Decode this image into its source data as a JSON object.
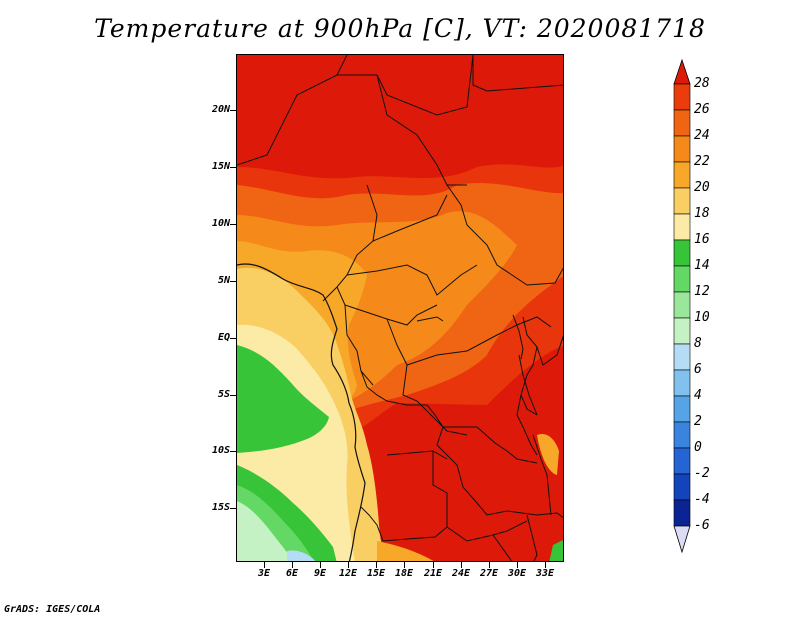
{
  "title": "Temperature at 900hPa [C], VT: 2020081718",
  "credit": "GrADS: IGES/COLA",
  "map": {
    "lat_labels": [
      "20N",
      "15N",
      "10N",
      "5N",
      "EQ",
      "5S",
      "10S",
      "15S"
    ],
    "lon_labels": [
      "3E",
      "6E",
      "9E",
      "12E",
      "15E",
      "18E",
      "21E",
      "24E",
      "27E",
      "30E",
      "33E"
    ]
  },
  "colorbar": {
    "labels": [
      "28",
      "26",
      "24",
      "22",
      "20",
      "18",
      "16",
      "14",
      "12",
      "10",
      "8",
      "6",
      "4",
      "2",
      "0",
      "-2",
      "-4",
      "-6"
    ],
    "colors": [
      "#dd1a0a",
      "#ea3c0c",
      "#f06514",
      "#f58a1a",
      "#f7a828",
      "#f9cf64",
      "#fbeba6",
      "#38c438",
      "#64d864",
      "#9ae69a",
      "#c4f2c4",
      "#b4dcf4",
      "#82c0ee",
      "#56a4e6",
      "#3a84de",
      "#2464d4",
      "#1444bc",
      "#0a2494",
      "#000c64",
      "#dcdcf4"
    ],
    "top_arrow_color": "#dd1a0a",
    "bottom_arrow_color": "#dcdcf4"
  }
}
